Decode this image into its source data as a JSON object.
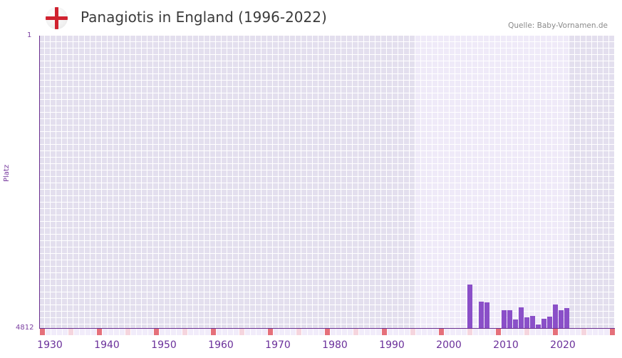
{
  "header": {
    "title": "Panagiotis in England (1996-2022)",
    "source": "Quelle: Baby-Vornamen.de",
    "flag_icon": "england-flag-icon"
  },
  "colors": {
    "bar": "#8a4fc8",
    "axis": "#6b2f8f",
    "decade_marker": "#e5707a",
    "half_decade_marker": "#f5d5de",
    "bg_outside": "#e3dfee",
    "bg_inside": "#efeaf8"
  },
  "chart_data": {
    "type": "bar",
    "title": "Panagiotis in England (1996-2022)",
    "xlabel": "",
    "ylabel": "Platz",
    "y_inverted": true,
    "ylim": [
      1,
      4812
    ],
    "y_ticks": [
      "1",
      "4812"
    ],
    "x_ticks": [
      "1930",
      "1940",
      "1950",
      "1960",
      "1970",
      "1980",
      "1990",
      "2000",
      "2010",
      "2020"
    ],
    "x_range": [
      1928,
      2028
    ],
    "highlight_range": [
      1994,
      2020
    ],
    "categories": [
      2003,
      2005,
      2006,
      2009,
      2010,
      2011,
      2012,
      2013,
      2014,
      2015,
      2016,
      2017,
      2018,
      2019,
      2020
    ],
    "values": [
      4097,
      4378,
      4390,
      4519,
      4519,
      4671,
      4472,
      4636,
      4612,
      4753,
      4659,
      4624,
      4425,
      4519,
      4484
    ],
    "grid": true,
    "legend": "none"
  }
}
